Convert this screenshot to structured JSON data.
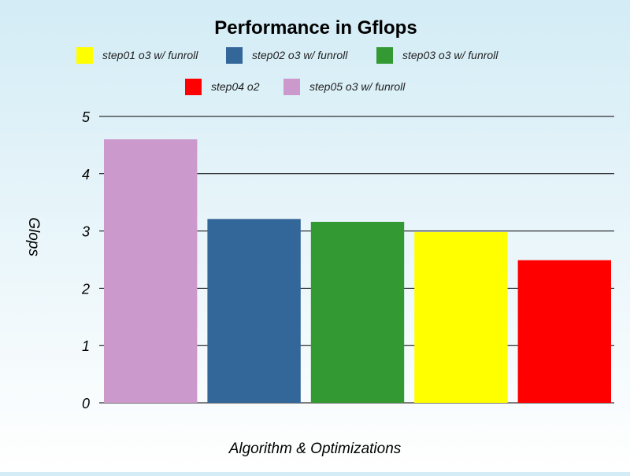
{
  "chart_data": {
    "type": "bar",
    "title": "Performance in Gflops",
    "xlabel": "Algorithm & Optimizations",
    "ylabel": "Glops",
    "ylim": [
      0,
      5
    ],
    "yticks": [
      0,
      1,
      2,
      3,
      4,
      5
    ],
    "grid": true,
    "legend_position": "top",
    "series": [
      {
        "name": "step05 o3 w/ funroll",
        "value": 4.6,
        "color": "#cc99cc"
      },
      {
        "name": "step02 o3 w/ funroll",
        "value": 3.21,
        "color": "#336699"
      },
      {
        "name": "step03 o3 w/ funroll",
        "value": 3.16,
        "color": "#339933"
      },
      {
        "name": "step01 o3 w/ funroll",
        "value": 2.98,
        "color": "#ffff00"
      },
      {
        "name": "step04 o2",
        "value": 2.49,
        "color": "#ff0000"
      }
    ],
    "legend_order": [
      3,
      1,
      2,
      4,
      0
    ]
  }
}
